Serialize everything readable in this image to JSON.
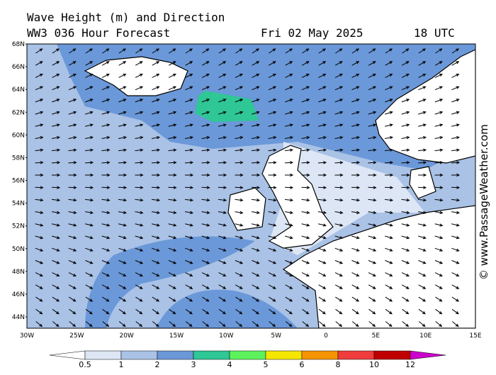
{
  "header": {
    "title": "Wave Height (m) and Direction",
    "model": "WW3 036 Hour Forecast",
    "date": "Fri 02 May 2025",
    "time": "18 UTC"
  },
  "lat_labels": [
    "68N",
    "66N",
    "64N",
    "62N",
    "60N",
    "58N",
    "56N",
    "54N",
    "52N",
    "50N",
    "48N",
    "46N",
    "44N"
  ],
  "lon_labels": [
    "30W",
    "25W",
    "20W",
    "15W",
    "10W",
    "5W",
    "0",
    "5E",
    "10E",
    "15E"
  ],
  "colorbar": {
    "labels": [
      "0.5",
      "1",
      "2",
      "3",
      "4",
      "5",
      "6",
      "8",
      "10",
      "12"
    ],
    "colors": [
      "#ffffff",
      "#dce6f5",
      "#a9c2e6",
      "#6b98d8",
      "#2ec795",
      "#5cf25c",
      "#f5e600",
      "#f59300",
      "#f03c3c",
      "#c00000",
      "#cc00cc"
    ]
  },
  "watermark": "© www.PassageWeather.com"
}
